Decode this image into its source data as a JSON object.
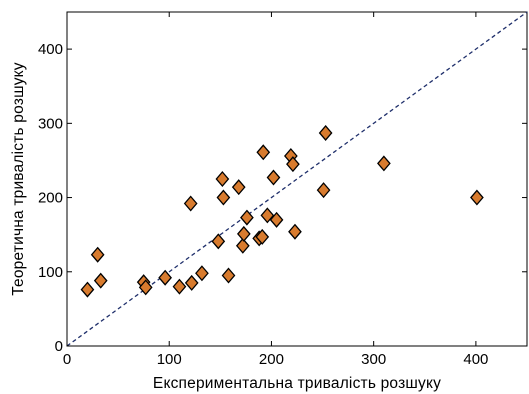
{
  "chart_data": {
    "type": "scatter",
    "title": "",
    "xlabel": "Експериментальна  тривалість  розшуку",
    "ylabel": "Теоретична  тривалість  розшуку",
    "xlim": [
      0,
      450
    ],
    "ylim": [
      0,
      450
    ],
    "x_ticks": [
      0,
      100,
      200,
      300,
      400
    ],
    "y_ticks": [
      0,
      100,
      200,
      300,
      400
    ],
    "grid": false,
    "legend": "none",
    "reference_line": {
      "from": [
        0,
        0
      ],
      "to": [
        450,
        450
      ],
      "style": "dashed",
      "color": "#1f2f6b"
    },
    "marker": {
      "shape": "diamond",
      "fill": "#d87b2e",
      "stroke": "#000000"
    },
    "series": [
      {
        "points": [
          [
            20,
            76
          ],
          [
            30,
            123
          ],
          [
            33,
            88
          ],
          [
            75,
            86
          ],
          [
            77,
            79
          ],
          [
            96,
            92
          ],
          [
            110,
            80
          ],
          [
            121,
            192
          ],
          [
            122,
            85
          ],
          [
            132,
            98
          ],
          [
            148,
            141
          ],
          [
            152,
            225
          ],
          [
            153,
            200
          ],
          [
            158,
            95
          ],
          [
            168,
            214
          ],
          [
            172,
            135
          ],
          [
            173,
            151
          ],
          [
            176,
            173
          ],
          [
            188,
            145
          ],
          [
            191,
            147
          ],
          [
            192,
            261
          ],
          [
            196,
            176
          ],
          [
            202,
            227
          ],
          [
            205,
            170
          ],
          [
            219,
            256
          ],
          [
            221,
            245
          ],
          [
            223,
            154
          ],
          [
            251,
            210
          ],
          [
            253,
            287
          ],
          [
            310,
            246
          ],
          [
            401,
            200
          ]
        ]
      }
    ]
  }
}
